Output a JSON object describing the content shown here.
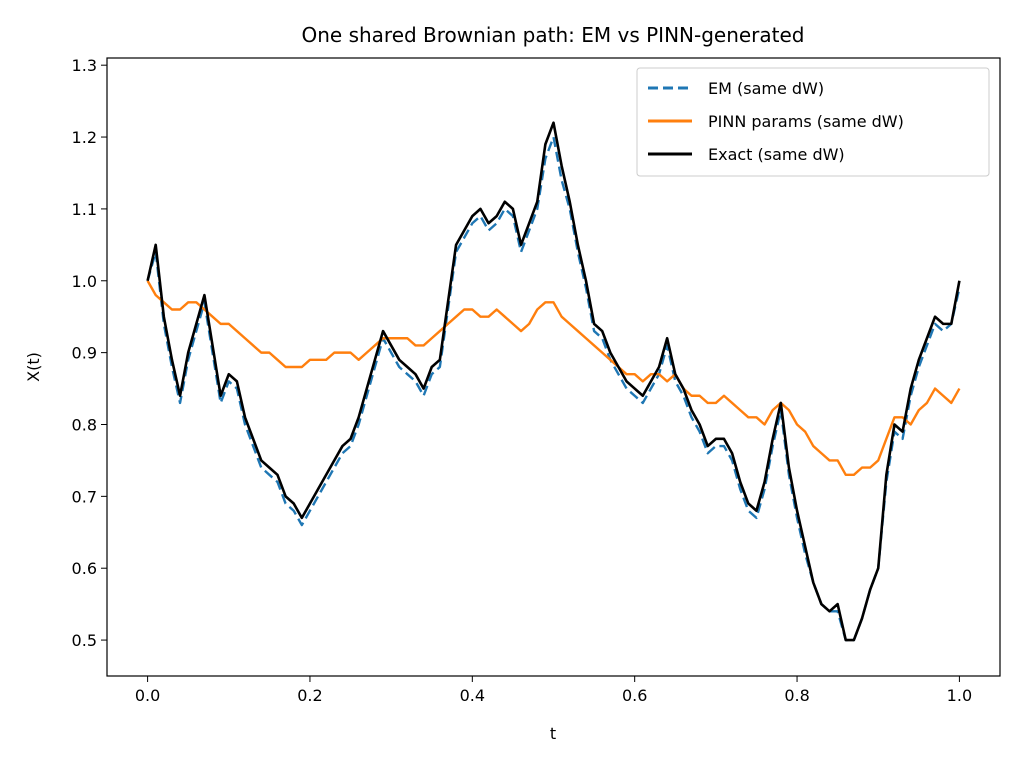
{
  "chart_data": {
    "type": "line",
    "title": "One shared Brownian path: EM vs PINN-generated",
    "xlabel": "t",
    "ylabel": "X(t)",
    "xlim": [
      -0.05,
      1.05
    ],
    "ylim": [
      0.45,
      1.31
    ],
    "xticks": [
      0.0,
      0.2,
      0.4,
      0.6,
      0.8,
      1.0
    ],
    "xtick_labels": [
      "0.0",
      "0.2",
      "0.4",
      "0.6",
      "0.8",
      "1.0"
    ],
    "yticks": [
      0.5,
      0.6,
      0.7,
      0.8,
      0.9,
      1.0,
      1.1,
      1.2,
      1.3
    ],
    "ytick_labels": [
      "0.5",
      "0.6",
      "0.7",
      "0.8",
      "0.9",
      "1.0",
      "1.1",
      "1.2",
      "1.3"
    ],
    "grid": false,
    "legend_position": "top-right",
    "series": [
      {
        "name": "EM (same dW)",
        "color": "#1f77b4",
        "style": "dashed",
        "x": [
          0.0,
          0.01,
          0.02,
          0.03,
          0.04,
          0.05,
          0.06,
          0.07,
          0.08,
          0.09,
          0.1,
          0.11,
          0.12,
          0.13,
          0.14,
          0.15,
          0.16,
          0.17,
          0.18,
          0.19,
          0.2,
          0.21,
          0.22,
          0.23,
          0.24,
          0.25,
          0.26,
          0.27,
          0.28,
          0.29,
          0.3,
          0.31,
          0.32,
          0.33,
          0.34,
          0.35,
          0.36,
          0.37,
          0.38,
          0.39,
          0.4,
          0.41,
          0.42,
          0.43,
          0.44,
          0.45,
          0.46,
          0.47,
          0.48,
          0.49,
          0.5,
          0.51,
          0.52,
          0.53,
          0.54,
          0.55,
          0.56,
          0.57,
          0.58,
          0.59,
          0.6,
          0.61,
          0.62,
          0.63,
          0.64,
          0.65,
          0.66,
          0.67,
          0.68,
          0.69,
          0.7,
          0.71,
          0.72,
          0.73,
          0.74,
          0.75,
          0.76,
          0.77,
          0.78,
          0.79,
          0.8,
          0.81,
          0.82,
          0.83,
          0.84,
          0.85,
          0.86,
          0.87,
          0.88,
          0.89,
          0.9,
          0.91,
          0.92,
          0.93,
          0.94,
          0.95,
          0.96,
          0.97,
          0.98,
          0.99,
          1.0
        ],
        "y": [
          1.0,
          1.04,
          0.94,
          0.88,
          0.83,
          0.89,
          0.93,
          0.97,
          0.9,
          0.83,
          0.86,
          0.85,
          0.8,
          0.77,
          0.74,
          0.73,
          0.72,
          0.69,
          0.68,
          0.66,
          0.68,
          0.7,
          0.72,
          0.74,
          0.76,
          0.77,
          0.8,
          0.84,
          0.88,
          0.92,
          0.9,
          0.88,
          0.87,
          0.86,
          0.84,
          0.87,
          0.88,
          0.96,
          1.04,
          1.06,
          1.08,
          1.09,
          1.07,
          1.08,
          1.1,
          1.09,
          1.04,
          1.07,
          1.1,
          1.17,
          1.2,
          1.14,
          1.1,
          1.04,
          0.99,
          0.93,
          0.92,
          0.89,
          0.87,
          0.85,
          0.84,
          0.83,
          0.85,
          0.87,
          0.91,
          0.86,
          0.84,
          0.81,
          0.79,
          0.76,
          0.77,
          0.77,
          0.75,
          0.71,
          0.68,
          0.67,
          0.71,
          0.77,
          0.82,
          0.73,
          0.67,
          0.62,
          0.58,
          0.55,
          0.54,
          0.54,
          0.5,
          0.5,
          0.53,
          0.57,
          0.6,
          0.72,
          0.79,
          0.78,
          0.84,
          0.88,
          0.91,
          0.94,
          0.93,
          0.94,
          0.99
        ]
      },
      {
        "name": "PINN params (same dW)",
        "color": "#ff7f0e",
        "style": "solid",
        "x": [
          0.0,
          0.01,
          0.02,
          0.03,
          0.04,
          0.05,
          0.06,
          0.07,
          0.08,
          0.09,
          0.1,
          0.11,
          0.12,
          0.13,
          0.14,
          0.15,
          0.16,
          0.17,
          0.18,
          0.19,
          0.2,
          0.21,
          0.22,
          0.23,
          0.24,
          0.25,
          0.26,
          0.27,
          0.28,
          0.29,
          0.3,
          0.31,
          0.32,
          0.33,
          0.34,
          0.35,
          0.36,
          0.37,
          0.38,
          0.39,
          0.4,
          0.41,
          0.42,
          0.43,
          0.44,
          0.45,
          0.46,
          0.47,
          0.48,
          0.49,
          0.5,
          0.51,
          0.52,
          0.53,
          0.54,
          0.55,
          0.56,
          0.57,
          0.58,
          0.59,
          0.6,
          0.61,
          0.62,
          0.63,
          0.64,
          0.65,
          0.66,
          0.67,
          0.68,
          0.69,
          0.7,
          0.71,
          0.72,
          0.73,
          0.74,
          0.75,
          0.76,
          0.77,
          0.78,
          0.79,
          0.8,
          0.81,
          0.82,
          0.83,
          0.84,
          0.85,
          0.86,
          0.87,
          0.88,
          0.89,
          0.9,
          0.91,
          0.92,
          0.93,
          0.94,
          0.95,
          0.96,
          0.97,
          0.98,
          0.99,
          1.0
        ],
        "y": [
          1.0,
          0.98,
          0.97,
          0.96,
          0.96,
          0.97,
          0.97,
          0.96,
          0.95,
          0.94,
          0.94,
          0.93,
          0.92,
          0.91,
          0.9,
          0.9,
          0.89,
          0.88,
          0.88,
          0.88,
          0.89,
          0.89,
          0.89,
          0.9,
          0.9,
          0.9,
          0.89,
          0.9,
          0.91,
          0.92,
          0.92,
          0.92,
          0.92,
          0.91,
          0.91,
          0.92,
          0.93,
          0.94,
          0.95,
          0.96,
          0.96,
          0.95,
          0.95,
          0.96,
          0.95,
          0.94,
          0.93,
          0.94,
          0.96,
          0.97,
          0.97,
          0.95,
          0.94,
          0.93,
          0.92,
          0.91,
          0.9,
          0.89,
          0.88,
          0.87,
          0.87,
          0.86,
          0.87,
          0.87,
          0.86,
          0.87,
          0.85,
          0.84,
          0.84,
          0.83,
          0.83,
          0.84,
          0.83,
          0.82,
          0.81,
          0.81,
          0.8,
          0.82,
          0.83,
          0.82,
          0.8,
          0.79,
          0.77,
          0.76,
          0.75,
          0.75,
          0.73,
          0.73,
          0.74,
          0.74,
          0.75,
          0.78,
          0.81,
          0.81,
          0.8,
          0.82,
          0.83,
          0.85,
          0.84,
          0.83,
          0.85
        ]
      },
      {
        "name": "Exact (same dW)",
        "color": "#000000",
        "style": "solid",
        "x": [
          0.0,
          0.01,
          0.02,
          0.03,
          0.04,
          0.05,
          0.06,
          0.07,
          0.08,
          0.09,
          0.1,
          0.11,
          0.12,
          0.13,
          0.14,
          0.15,
          0.16,
          0.17,
          0.18,
          0.19,
          0.2,
          0.21,
          0.22,
          0.23,
          0.24,
          0.25,
          0.26,
          0.27,
          0.28,
          0.29,
          0.3,
          0.31,
          0.32,
          0.33,
          0.34,
          0.35,
          0.36,
          0.37,
          0.38,
          0.39,
          0.4,
          0.41,
          0.42,
          0.43,
          0.44,
          0.45,
          0.46,
          0.47,
          0.48,
          0.49,
          0.5,
          0.51,
          0.52,
          0.53,
          0.54,
          0.55,
          0.56,
          0.57,
          0.58,
          0.59,
          0.6,
          0.61,
          0.62,
          0.63,
          0.64,
          0.65,
          0.66,
          0.67,
          0.68,
          0.69,
          0.7,
          0.71,
          0.72,
          0.73,
          0.74,
          0.75,
          0.76,
          0.77,
          0.78,
          0.79,
          0.8,
          0.81,
          0.82,
          0.83,
          0.84,
          0.85,
          0.86,
          0.87,
          0.88,
          0.89,
          0.9,
          0.91,
          0.92,
          0.93,
          0.94,
          0.95,
          0.96,
          0.97,
          0.98,
          0.99,
          1.0
        ],
        "y": [
          1.0,
          1.05,
          0.95,
          0.89,
          0.84,
          0.9,
          0.94,
          0.98,
          0.91,
          0.84,
          0.87,
          0.86,
          0.81,
          0.78,
          0.75,
          0.74,
          0.73,
          0.7,
          0.69,
          0.67,
          0.69,
          0.71,
          0.73,
          0.75,
          0.77,
          0.78,
          0.81,
          0.85,
          0.89,
          0.93,
          0.91,
          0.89,
          0.88,
          0.87,
          0.85,
          0.88,
          0.89,
          0.97,
          1.05,
          1.07,
          1.09,
          1.1,
          1.08,
          1.09,
          1.11,
          1.1,
          1.05,
          1.08,
          1.11,
          1.19,
          1.22,
          1.16,
          1.11,
          1.05,
          1.0,
          0.94,
          0.93,
          0.9,
          0.88,
          0.86,
          0.85,
          0.84,
          0.86,
          0.88,
          0.92,
          0.87,
          0.85,
          0.82,
          0.8,
          0.77,
          0.78,
          0.78,
          0.76,
          0.72,
          0.69,
          0.68,
          0.72,
          0.78,
          0.83,
          0.74,
          0.68,
          0.63,
          0.58,
          0.55,
          0.54,
          0.55,
          0.5,
          0.5,
          0.53,
          0.57,
          0.6,
          0.73,
          0.8,
          0.79,
          0.85,
          0.89,
          0.92,
          0.95,
          0.94,
          0.94,
          1.0
        ]
      }
    ]
  }
}
